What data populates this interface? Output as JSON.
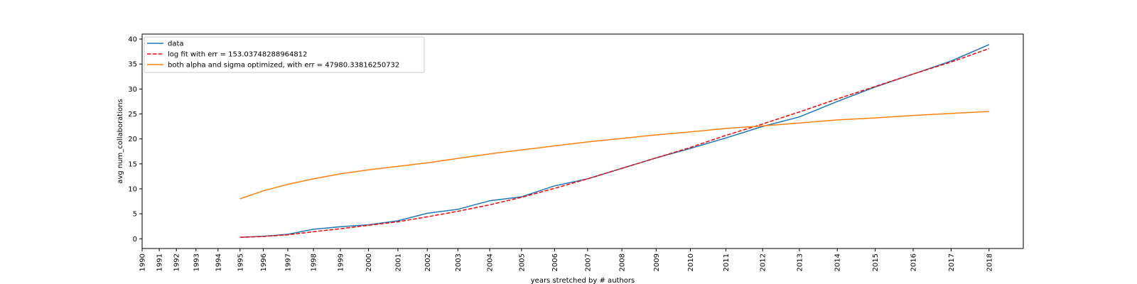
{
  "chart_data": {
    "type": "line",
    "title": "",
    "xlabel": "years stretched by # authors",
    "ylabel": "avg num_collaborations",
    "ylim": [
      -1.95,
      41.0
    ],
    "yticks": [
      0,
      5,
      10,
      15,
      20,
      25,
      30,
      35,
      40
    ],
    "ytick_labels": [
      "0",
      "5",
      "10",
      "15",
      "20",
      "25",
      "30",
      "35",
      "40"
    ],
    "xtick_labels": [
      "1990",
      "1991",
      "1992",
      "1993",
      "1994",
      "1995",
      "1996",
      "1997",
      "1998",
      "1999",
      "2000",
      "2001",
      "2002",
      "2003",
      "2004",
      "2005",
      "2006",
      "2007",
      "2008",
      "2009",
      "2010",
      "2011",
      "2012",
      "2013",
      "2014",
      "2015",
      "2016",
      "2017",
      "2018"
    ],
    "xtick_stretched_positions": [
      0.0,
      0.7,
      1.4,
      2.2,
      3.1,
      4.0,
      4.95,
      5.95,
      7.0,
      8.1,
      9.25,
      10.45,
      11.65,
      12.9,
      14.2,
      15.5,
      16.85,
      18.2,
      19.6,
      21.0,
      22.4,
      23.85,
      25.35,
      26.85,
      28.4,
      29.95,
      31.5,
      33.05,
      34.6
    ],
    "legend_position": "upper left",
    "grid": false,
    "series": [
      {
        "name": "data",
        "color": "#1f77b4",
        "style": "solid",
        "x": [
          1995,
          1996,
          1997,
          1998,
          1999,
          2000,
          2001,
          2002,
          2003,
          2004,
          2005,
          2006,
          2007,
          2008,
          2009,
          2010,
          2011,
          2012,
          2013,
          2014,
          2015,
          2016,
          2017,
          2018
        ],
        "y": [
          0.3,
          0.5,
          0.9,
          1.9,
          2.4,
          2.8,
          3.6,
          5.1,
          5.9,
          7.6,
          8.4,
          10.6,
          12.0,
          14.1,
          16.2,
          18.1,
          20.2,
          22.5,
          24.4,
          27.5,
          30.4,
          33.0,
          35.6,
          38.9
        ]
      },
      {
        "name": "log fit with err = 153.03748288964812",
        "color": "#ff0000",
        "style": "dashed",
        "x": [
          1995,
          1996,
          1997,
          1998,
          1999,
          2000,
          2001,
          2002,
          2003,
          2004,
          2005,
          2006,
          2007,
          2008,
          2009,
          2010,
          2011,
          2012,
          2013,
          2014,
          2015,
          2016,
          2017,
          2018
        ],
        "y": [
          0.3,
          0.45,
          0.8,
          1.4,
          2.0,
          2.7,
          3.4,
          4.4,
          5.5,
          6.8,
          8.3,
          10.1,
          12.0,
          14.1,
          16.2,
          18.3,
          20.7,
          23.0,
          25.4,
          28.0,
          30.5,
          33.0,
          35.4,
          38.1
        ]
      },
      {
        "name": "both alpha and sigma optimized, with err = 47980.33816250732",
        "color": "#ff7f0e",
        "style": "solid",
        "x": [
          1995,
          1996,
          1997,
          1998,
          1999,
          2000,
          2001,
          2002,
          2003,
          2004,
          2005,
          2006,
          2007,
          2008,
          2009,
          2010,
          2011,
          2012,
          2013,
          2014,
          2015,
          2016,
          2017,
          2018
        ],
        "y": [
          8.0,
          9.6,
          10.9,
          12.0,
          13.0,
          13.8,
          14.5,
          15.2,
          16.1,
          17.0,
          17.8,
          18.6,
          19.4,
          20.1,
          20.8,
          21.4,
          22.1,
          22.6,
          23.2,
          23.8,
          24.2,
          24.7,
          25.1,
          25.5
        ]
      }
    ]
  }
}
